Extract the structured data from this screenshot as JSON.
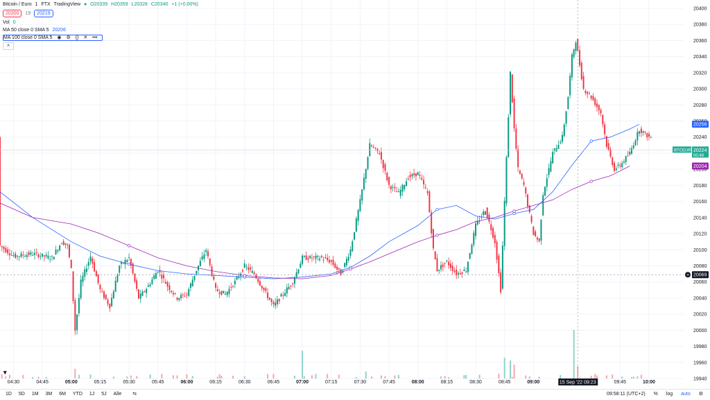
{
  "header": {
    "symbol": "Bitcoin / Euro",
    "interval": "1",
    "exchange": "FTX",
    "source": "TradingView",
    "ohlc": {
      "o": "O20339",
      "h": "H20359",
      "l": "L20328",
      "c": "C20340",
      "chg": "+1 (+0.00%)"
    },
    "sell_price": "20200",
    "spread": "19",
    "buy_price": "20219"
  },
  "indicators": {
    "vol_label": "Vol",
    "vol_value": "0",
    "ma50_label": "MA 50 close 0 SMA 5",
    "ma50_value": "20206",
    "ma100_label": "MA 100 close 0 SMA 5",
    "ma100_icons": [
      "eye-icon",
      "settings-icon",
      "code-icon",
      "close-icon",
      "more-icon"
    ],
    "collapse_icon": "chevron-up-icon"
  },
  "colors": {
    "up": "#089981",
    "down": "#f23645",
    "ma50": "#2962ff",
    "ma100": "#9c27b0",
    "last_price": "#22ab94",
    "crosshair_label": "#131722"
  },
  "chart_data": {
    "type": "candlestick",
    "ylim": [
      19940,
      20400
    ],
    "y_ticks": [
      "20400",
      "20380",
      "20360",
      "20340",
      "20320",
      "20300",
      "20280",
      "20260",
      "20240",
      "20220",
      "20200",
      "20180",
      "20160",
      "20140",
      "20120",
      "20100",
      "20080",
      "20060",
      "20040",
      "20020",
      "20000",
      "19980",
      "19960",
      "19940"
    ],
    "x_ticks": [
      {
        "label": "04:30",
        "minute": 0,
        "bold": false
      },
      {
        "label": "04:45",
        "minute": 15,
        "bold": false
      },
      {
        "label": "05:00",
        "minute": 30,
        "bold": true
      },
      {
        "label": "05:15",
        "minute": 45,
        "bold": false
      },
      {
        "label": "05:30",
        "minute": 60,
        "bold": false
      },
      {
        "label": "05:45",
        "minute": 75,
        "bold": false
      },
      {
        "label": "06:00",
        "minute": 90,
        "bold": true
      },
      {
        "label": "06:15",
        "minute": 105,
        "bold": false
      },
      {
        "label": "06:30",
        "minute": 120,
        "bold": false
      },
      {
        "label": "06:45",
        "minute": 135,
        "bold": false
      },
      {
        "label": "07:00",
        "minute": 150,
        "bold": true
      },
      {
        "label": "07:15",
        "minute": 165,
        "bold": false
      },
      {
        "label": "07:30",
        "minute": 180,
        "bold": false
      },
      {
        "label": "07:45",
        "minute": 195,
        "bold": false
      },
      {
        "label": "08:00",
        "minute": 210,
        "bold": true
      },
      {
        "label": "08:15",
        "minute": 225,
        "bold": false
      },
      {
        "label": "08:30",
        "minute": 240,
        "bold": false
      },
      {
        "label": "08:45",
        "minute": 255,
        "bold": false
      },
      {
        "label": "09:00",
        "minute": 270,
        "bold": true
      },
      {
        "label": "09:45",
        "minute": 315,
        "bold": false
      },
      {
        "label": "10:00",
        "minute": 330,
        "bold": true
      }
    ],
    "x_range_minutes": [
      -7,
      348
    ],
    "series": [
      {
        "name": "MA 50 close 0 SMA 5",
        "color": "#2962ff",
        "points": [
          [
            -7,
            20172
          ],
          [
            10,
            20140
          ],
          [
            30,
            20110
          ],
          [
            45,
            20092
          ],
          [
            60,
            20082
          ],
          [
            75,
            20074
          ],
          [
            90,
            20070
          ],
          [
            105,
            20068
          ],
          [
            120,
            20066
          ],
          [
            135,
            20064
          ],
          [
            150,
            20066
          ],
          [
            165,
            20070
          ],
          [
            175,
            20078
          ],
          [
            185,
            20092
          ],
          [
            195,
            20110
          ],
          [
            210,
            20130
          ],
          [
            220,
            20150
          ],
          [
            230,
            20155
          ],
          [
            240,
            20142
          ],
          [
            250,
            20138
          ],
          [
            260,
            20145
          ],
          [
            270,
            20150
          ],
          [
            280,
            20172
          ],
          [
            290,
            20205
          ],
          [
            300,
            20235
          ],
          [
            310,
            20240
          ],
          [
            320,
            20250
          ],
          [
            325,
            20256
          ]
        ]
      },
      {
        "name": "MA 100 close 0 SMA 5",
        "color": "#9c27b0",
        "points": [
          [
            -7,
            20158
          ],
          [
            10,
            20140
          ],
          [
            30,
            20132
          ],
          [
            45,
            20120
          ],
          [
            60,
            20105
          ],
          [
            75,
            20090
          ],
          [
            90,
            20080
          ],
          [
            105,
            20073
          ],
          [
            120,
            20068
          ],
          [
            135,
            20065
          ],
          [
            150,
            20064
          ],
          [
            165,
            20068
          ],
          [
            175,
            20076
          ],
          [
            185,
            20085
          ],
          [
            195,
            20095
          ],
          [
            210,
            20110
          ],
          [
            220,
            20118
          ],
          [
            230,
            20125
          ],
          [
            240,
            20135
          ],
          [
            250,
            20140
          ],
          [
            260,
            20148
          ],
          [
            270,
            20155
          ],
          [
            280,
            20162
          ],
          [
            290,
            20175
          ],
          [
            300,
            20185
          ],
          [
            310,
            20192
          ],
          [
            320,
            20204
          ]
        ]
      }
    ],
    "price_labels": [
      {
        "text": "20256",
        "value": 20256,
        "color": "#2962ff"
      },
      {
        "text": "20204",
        "value": 20204,
        "color": "#9c27b0"
      },
      {
        "text": "20069",
        "value": 20069,
        "color": "#131722"
      }
    ],
    "last_price": {
      "symbol": "BTCEUR",
      "value": "20224",
      "countdown": "00:49",
      "level": 20224
    },
    "crosshair": {
      "price": "20069",
      "level": 20069,
      "time": "15 Sep '22",
      "time2": "09:23",
      "minute": 293
    }
  },
  "bottom_bar": {
    "ranges": [
      "1D",
      "5D",
      "1M",
      "3M",
      "6M",
      "YTD",
      "1J",
      "5J",
      "Alle"
    ],
    "goto_icon": "calendar-range-icon",
    "clock": "09:58:11 (UTC+2)",
    "percent_label": "%",
    "log_label": "log",
    "auto_label": "auto",
    "settings_icon": "gear-icon"
  }
}
